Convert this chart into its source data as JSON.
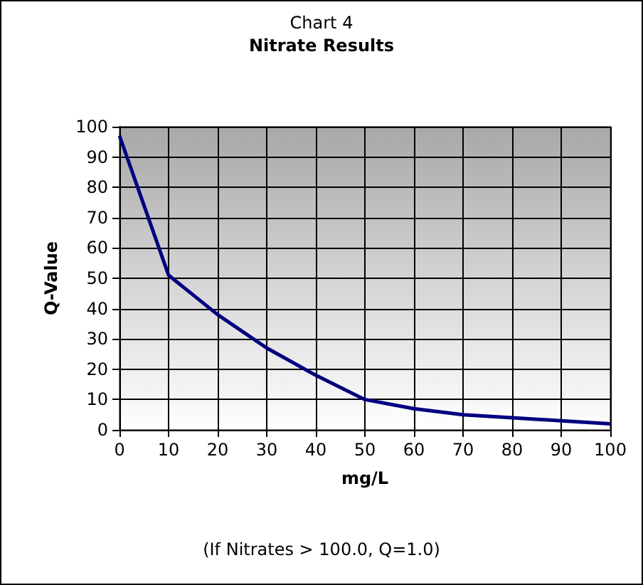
{
  "chart_data": {
    "type": "line",
    "title": "Chart 4",
    "subtitle": "Nitrate Results",
    "xlabel": "mg/L",
    "ylabel": "Q-Value",
    "annotations": [
      "(If Nitrates > 100.0, Q=1.0)"
    ],
    "x": [
      0,
      10,
      20,
      30,
      40,
      50,
      60,
      70,
      80,
      90,
      100
    ],
    "series": [
      {
        "color": "#000080",
        "values": [
          97,
          51,
          38,
          27,
          18,
          10,
          7,
          5,
          4,
          3,
          2
        ]
      }
    ],
    "xlim": [
      0,
      100
    ],
    "xticks": [
      0,
      10,
      20,
      30,
      40,
      50,
      60,
      70,
      80,
      90,
      100
    ],
    "ylim": [
      0,
      100
    ],
    "yticks": [
      0,
      10,
      20,
      30,
      40,
      50,
      60,
      70,
      80,
      90,
      100
    ],
    "grid": true,
    "marker": "none",
    "line_style": "solid"
  }
}
